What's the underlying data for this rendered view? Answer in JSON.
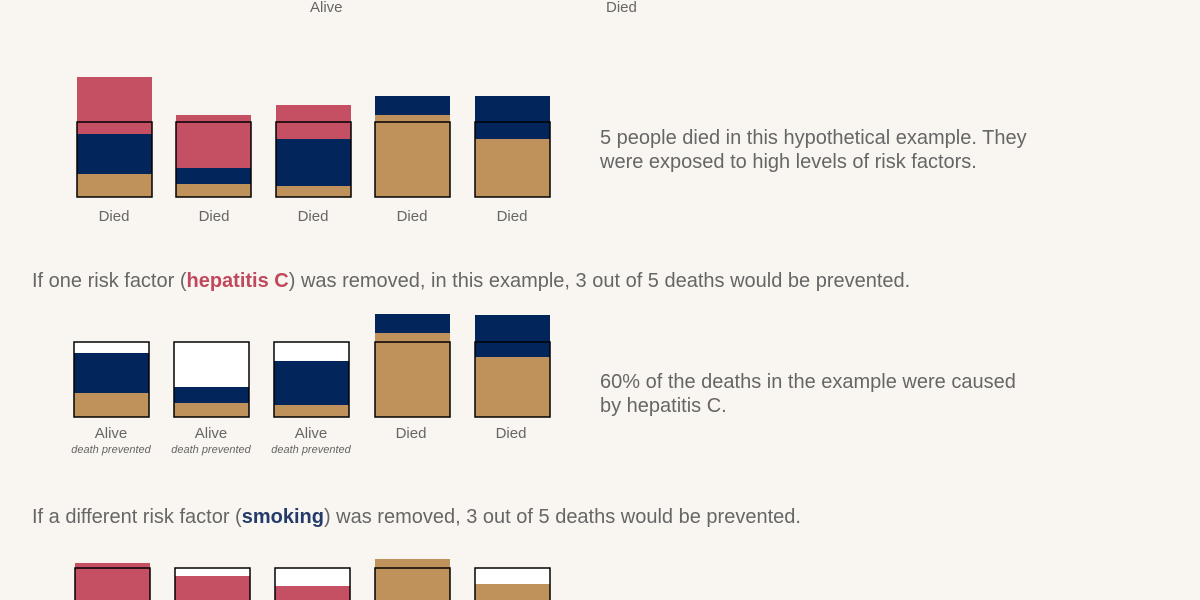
{
  "colors": {
    "hepatitis": "#c55064",
    "smoking": "#02265c",
    "other": "#bf925b",
    "empty": "#ffffff",
    "outline": "#000000",
    "background": "#f9f6f1"
  },
  "top": {
    "label_left": "Alive",
    "label_right": "Died"
  },
  "section1": {
    "labels": [
      "Died",
      "Died",
      "Died",
      "Died",
      "Died"
    ],
    "description": "5 people died in this hypothetical example. They were exposed to high levels of risk factors."
  },
  "sentence1": {
    "before": "If one risk factor (",
    "highlight": "hepatitis C",
    "after": ") was removed, in this example, 3 out of 5 deaths would be prevented."
  },
  "section2": {
    "labels": [
      "Alive",
      "Alive",
      "Alive",
      "Died",
      "Died"
    ],
    "sublabels": [
      "death prevented",
      "death prevented",
      "death prevented",
      "",
      ""
    ],
    "description": "60% of the deaths in the example were caused by hepatitis C."
  },
  "sentence2": {
    "before": "If a different risk factor (",
    "highlight": "smoking",
    "after": ") was removed, 3 out of 5 deaths would be prevented."
  }
}
